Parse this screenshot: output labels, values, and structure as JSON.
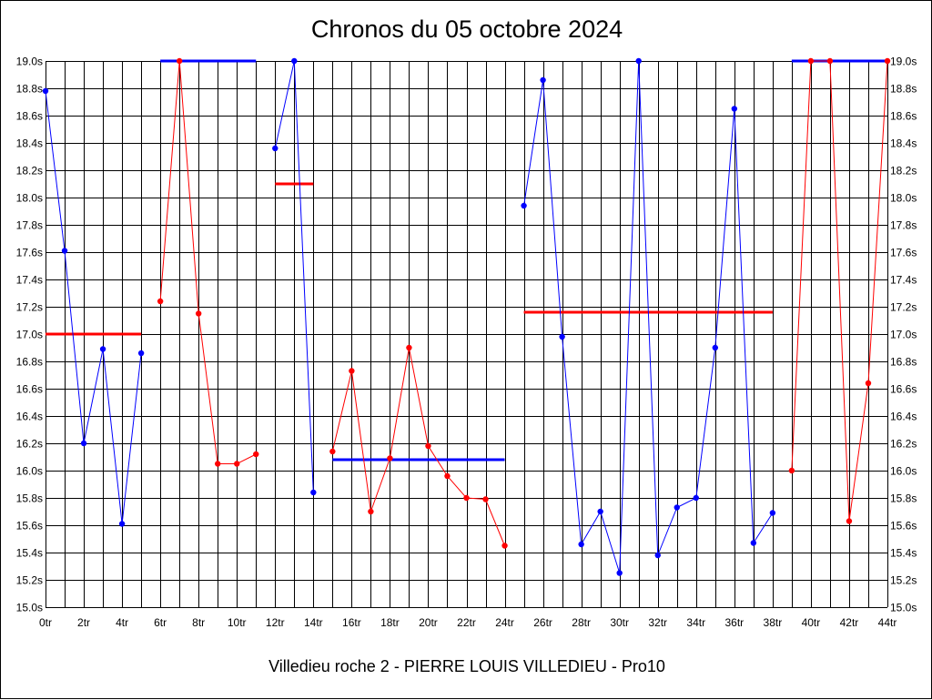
{
  "chart_data": {
    "type": "line",
    "title": "Chronos du 05 octobre 2024",
    "subtitle": "Villedieu roche 2 - PIERRE LOUIS VILLEDIEU - Pro10",
    "xlabel": "",
    "ylabel": "",
    "xlim": [
      0,
      44
    ],
    "ylim": [
      15.0,
      19.0
    ],
    "grid": true,
    "x_ticks": [
      "0tr",
      "2tr",
      "4tr",
      "6tr",
      "8tr",
      "10tr",
      "12tr",
      "14tr",
      "16tr",
      "18tr",
      "20tr",
      "22tr",
      "24tr",
      "26tr",
      "28tr",
      "30tr",
      "32tr",
      "34tr",
      "36tr",
      "38tr",
      "40tr",
      "42tr",
      "44tr"
    ],
    "y_ticks": [
      "15.0s",
      "15.2s",
      "15.4s",
      "15.6s",
      "15.8s",
      "16.0s",
      "16.2s",
      "16.4s",
      "16.6s",
      "16.8s",
      "17.0s",
      "17.2s",
      "17.4s",
      "17.6s",
      "17.8s",
      "18.0s",
      "18.2s",
      "18.4s",
      "18.6s",
      "18.8s",
      "19.0s"
    ],
    "colors": {
      "blue": "#0000ff",
      "red": "#ff0000"
    },
    "series": [
      {
        "color": "#0000ff",
        "points": [
          [
            0,
            18.78
          ],
          [
            1,
            17.61
          ],
          [
            2,
            16.2
          ],
          [
            3,
            16.89
          ],
          [
            4,
            15.61
          ],
          [
            5,
            16.86
          ]
        ]
      },
      {
        "color": "#ff0000",
        "points": [
          [
            6,
            17.24
          ],
          [
            7,
            19.0
          ],
          [
            8,
            17.15
          ],
          [
            9,
            16.05
          ],
          [
            10,
            16.05
          ],
          [
            11,
            16.12
          ]
        ]
      },
      {
        "color": "#0000ff",
        "points": [
          [
            12,
            18.36
          ],
          [
            13,
            19.0
          ],
          [
            14,
            15.84
          ]
        ]
      },
      {
        "color": "#ff0000",
        "points": [
          [
            15,
            16.14
          ],
          [
            16,
            16.73
          ],
          [
            17,
            15.7
          ],
          [
            18,
            16.09
          ],
          [
            19,
            16.9
          ],
          [
            20,
            16.18
          ],
          [
            21,
            15.96
          ],
          [
            22,
            15.8
          ],
          [
            23,
            15.79
          ],
          [
            24,
            15.45
          ]
        ]
      },
      {
        "color": "#0000ff",
        "points": [
          [
            25,
            17.94
          ],
          [
            26,
            18.86
          ],
          [
            27,
            16.98
          ],
          [
            28,
            15.46
          ],
          [
            29,
            15.7
          ],
          [
            30,
            15.25
          ],
          [
            31,
            19.0
          ],
          [
            32,
            15.38
          ],
          [
            33,
            15.73
          ],
          [
            34,
            15.8
          ],
          [
            35,
            16.9
          ],
          [
            36,
            18.65
          ],
          [
            37,
            15.47
          ],
          [
            38,
            15.69
          ]
        ]
      },
      {
        "color": "#ff0000",
        "points": [
          [
            39,
            16.0
          ],
          [
            40,
            19.0
          ],
          [
            41,
            19.0
          ],
          [
            42,
            15.63
          ],
          [
            43,
            16.64
          ],
          [
            44,
            19.0
          ]
        ]
      }
    ],
    "averages": [
      {
        "color": "#ff0000",
        "x": [
          0,
          5
        ],
        "y": 17.0
      },
      {
        "color": "#0000ff",
        "x": [
          6,
          11
        ],
        "y": 19.0
      },
      {
        "color": "#ff0000",
        "x": [
          12,
          14
        ],
        "y": 18.1
      },
      {
        "color": "#0000ff",
        "x": [
          15,
          24
        ],
        "y": 16.08
      },
      {
        "color": "#ff0000",
        "x": [
          25,
          38
        ],
        "y": 17.16
      },
      {
        "color": "#0000ff",
        "x": [
          39,
          44
        ],
        "y": 19.0
      }
    ]
  }
}
